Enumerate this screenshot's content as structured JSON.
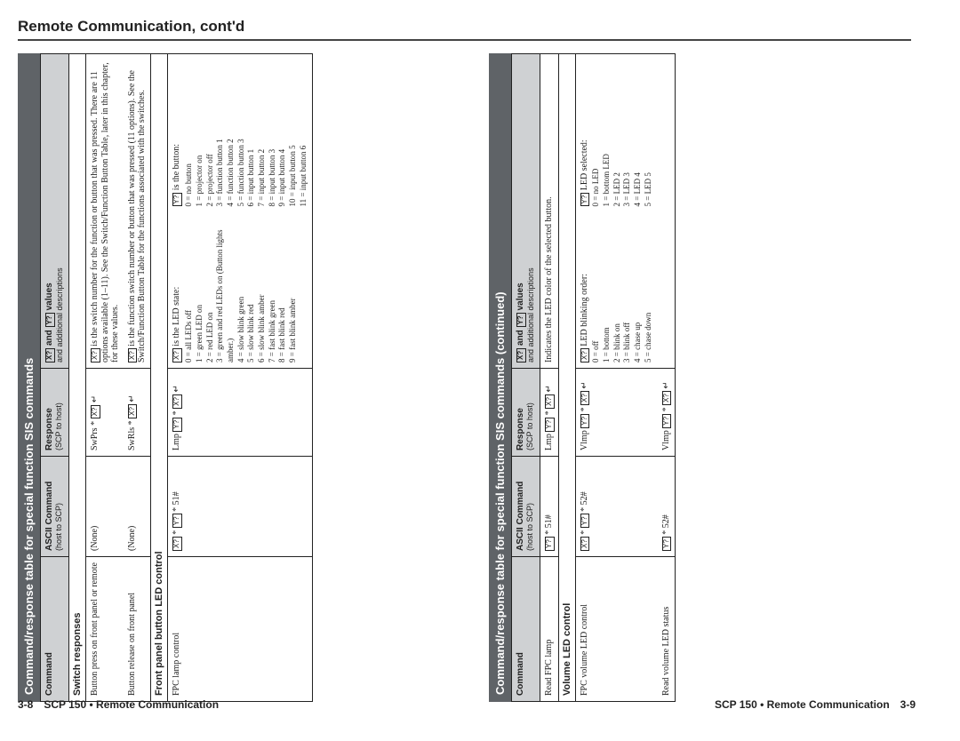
{
  "page_header": "Remote Communication, cont'd",
  "left_footer_num": "3-8",
  "left_footer_txt": "SCP 150 • Remote Communication",
  "right_footer_txt": "SCP 150 • Remote Communication",
  "right_footer_num": "3-9",
  "tbl1_title": "Command/response table for special function SIS commands",
  "tbl2_title": "Command/response table for special function SIS commands (continued)",
  "hdr_cmd": "Command",
  "hdr_ascii": "ASCII Command",
  "hdr_ascii_sub": "(host to SCP)",
  "hdr_resp": "Response",
  "hdr_resp_sub": "(SCP to host)",
  "hdr_vals": "values",
  "hdr_vals_sub": "and additional descriptions",
  "hdr_vals_pre": "and",
  "sec_switch": "Switch responses",
  "r1_cmd": "Button press on front panel or remote",
  "r1_ascii": "(None)",
  "r1_resp": "SwPrs *",
  "r1_desc": "is the switch number for the function or button that was pressed. There are 11 options available (1–11). See the Switch/Function Button Table, later in this chapter, for these values.",
  "r2_cmd": "Button release on front panel",
  "r2_ascii": "(None)",
  "r2_resp": "SwRls *",
  "r2_desc": "is the function switch number or button that was pressed (11 options). See the Switch/Function Button Table for the functions associated with the switches.",
  "sec_front": "Front panel button LED control",
  "r3_cmd": "FPC lamp control",
  "r3_ascii": "* 51#",
  "r3_resp": "Lmp",
  "r3_led_lbl": "is the LED state:",
  "r3_leds": [
    "0 = all LEDs off",
    "1 = green LED on",
    "2 = red LED on",
    "3 = green and red LEDs on (Button lights amber.)",
    "4 = slow blink green",
    "5 = slow blink red",
    "6 = slow blink amber",
    "7 = fast blink green",
    "8 = fast blink red",
    "9 = fast blink amber"
  ],
  "r3_btn_lbl": "is the button:",
  "r3_btns": [
    "0 = no button",
    "1 = projector on",
    "2 = projector off",
    "3 = function button 1",
    "4 = function button 2",
    "5 = function button 3",
    "6 = input button 1",
    "7 = input button 2",
    "8 = input button 3",
    "9 = input button 4",
    "10 = input button 5",
    "11 = input button 6"
  ],
  "r4_cmd": "Read FPC lamp",
  "r4_ascii": "* 51#",
  "r4_resp": "Lmp",
  "r4_desc": "Indicates the LED color of the selected button.",
  "sec_vol": "Volume LED control",
  "r5_cmd": "FPC volume LED control",
  "r5_ascii": "* 52#",
  "r5_resp": "Vlmp",
  "r5_blink_lbl": "LED blinking order:",
  "r5_blinks": [
    "0 = off",
    "1 = bottom",
    "2 = blink on",
    "3 = blink off",
    "4 = chase up",
    "5 = chase down"
  ],
  "r5_sel_lbl": "LED selected:",
  "r5_sels": [
    "0 = no LED",
    "1 = bottom LED",
    "2 = LED 2",
    "3 = LED 3",
    "4 = LED 4",
    "5 = LED 5"
  ],
  "r6_cmd": "Read volume LED status",
  "r6_ascii": "* 52#",
  "r6_resp": "Vlmp"
}
